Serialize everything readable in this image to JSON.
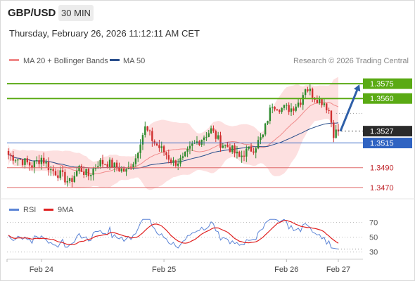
{
  "header": {
    "symbol": "GBP/USD",
    "timeframe": "30 MIN",
    "timestamp": "Thursday, February 26, 2026 11:12:11 AM CET"
  },
  "colors": {
    "candle_up": "#2e8b2e",
    "candle_down": "#d03030",
    "bollinger_fill": "#fde0e0",
    "ma20": "#f08a8a",
    "ma50": "#2a4f8c",
    "resistance": "#5aaa14",
    "support": "#e06a6a",
    "pivot": "#2f63c2",
    "arrow": "#2e5fa8",
    "rsi": "#5b84d6",
    "rsi_ma": "#e02020"
  },
  "chart_data": [
    {
      "type": "candlestick",
      "legend": [
        {
          "label": "MA 20 + Bollinger Bands",
          "color": "#f08a8a"
        },
        {
          "label": "MA 50",
          "color": "#2a4f8c"
        }
      ],
      "attribution": "Research © 2026 Trading Central",
      "ylim": [
        1.3455,
        1.359
      ],
      "x_ticks": [
        "Feb 24",
        "Feb 25",
        "Feb 26",
        "Feb 27"
      ],
      "levels": [
        {
          "label": "1.3575",
          "value": 1.3575,
          "kind": "resistance"
        },
        {
          "label": "1.3560",
          "value": 1.356,
          "kind": "resistance"
        },
        {
          "label": "1.3527",
          "value": 1.3527,
          "kind": "last"
        },
        {
          "label": "1.3515",
          "value": 1.3515,
          "kind": "pivot"
        },
        {
          "label": "1.3490",
          "value": 1.349,
          "kind": "support"
        },
        {
          "label": "1.3470",
          "value": 1.347,
          "kind": "support"
        }
      ],
      "projection": {
        "from": 1.3527,
        "to": 1.3575
      },
      "anchors": [
        [
          0,
          1.3503
        ],
        [
          6,
          1.3497
        ],
        [
          10,
          1.3492
        ],
        [
          14,
          1.35
        ],
        [
          18,
          1.3488
        ],
        [
          22,
          1.3483
        ],
        [
          26,
          1.3475
        ],
        [
          30,
          1.349
        ],
        [
          34,
          1.3482
        ],
        [
          38,
          1.3495
        ],
        [
          42,
          1.3495
        ],
        [
          46,
          1.349
        ],
        [
          50,
          1.3486
        ],
        [
          54,
          1.35
        ],
        [
          56,
          1.3518
        ],
        [
          58,
          1.353
        ],
        [
          62,
          1.3515
        ],
        [
          66,
          1.3506
        ],
        [
          70,
          1.3495
        ],
        [
          74,
          1.3498
        ],
        [
          78,
          1.3512
        ],
        [
          82,
          1.352
        ],
        [
          86,
          1.3528
        ],
        [
          90,
          1.3515
        ],
        [
          94,
          1.351
        ],
        [
          98,
          1.35
        ],
        [
          100,
          1.3505
        ],
        [
          104,
          1.351
        ],
        [
          108,
          1.3522
        ],
        [
          110,
          1.354
        ],
        [
          112,
          1.3555
        ],
        [
          116,
          1.355
        ],
        [
          120,
          1.355
        ],
        [
          124,
          1.3558
        ],
        [
          126,
          1.3572
        ],
        [
          130,
          1.3562
        ],
        [
          134,
          1.3556
        ],
        [
          136,
          1.3548
        ],
        [
          138,
          1.3525
        ],
        [
          140,
          1.3527
        ]
      ]
    },
    {
      "type": "line",
      "legend": [
        {
          "label": "RSI",
          "color": "#5b84d6"
        },
        {
          "label": "9MA",
          "color": "#e02020"
        }
      ],
      "ylim": [
        25,
        78
      ],
      "y_ticks": [
        70,
        50,
        30
      ],
      "x_ticks": [
        "Feb 24",
        "Feb 25",
        "Feb 26",
        "Feb 27"
      ]
    }
  ]
}
